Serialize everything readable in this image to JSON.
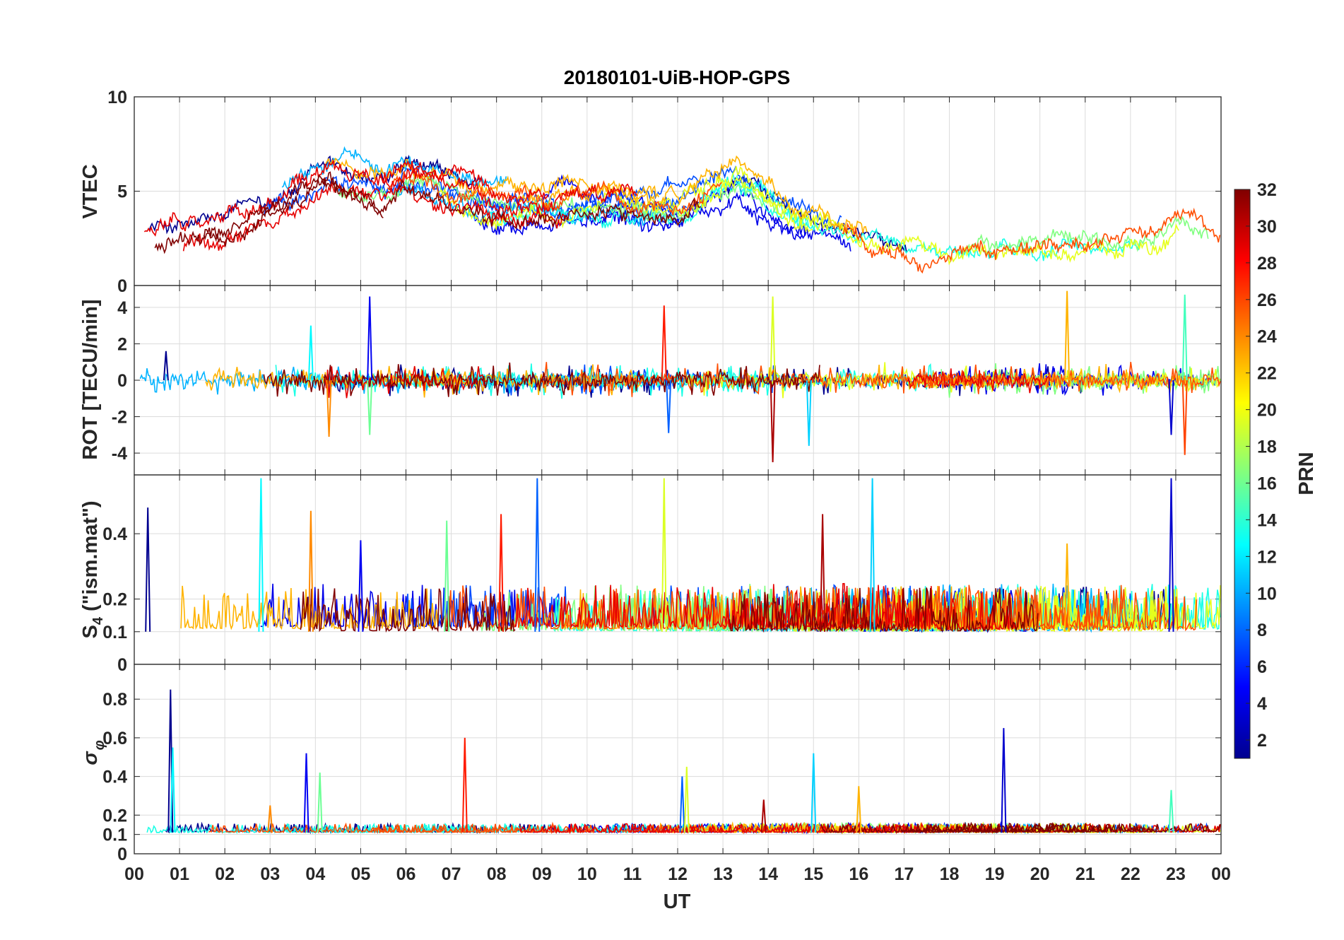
{
  "chart_data": {
    "type": "line",
    "title": "20180101-UiB-HOP-GPS",
    "x_label": "UT",
    "x_tick_labels": [
      "00",
      "01",
      "02",
      "03",
      "04",
      "05",
      "06",
      "07",
      "08",
      "09",
      "10",
      "11",
      "12",
      "13",
      "14",
      "15",
      "16",
      "17",
      "18",
      "19",
      "20",
      "21",
      "22",
      "23",
      "00"
    ],
    "xlim_hours": [
      0,
      24
    ],
    "colorbar": {
      "label": "PRN",
      "range": [
        1,
        32
      ],
      "tick_labels": [
        "2",
        "4",
        "6",
        "8",
        "10",
        "12",
        "14",
        "16",
        "18",
        "20",
        "22",
        "24",
        "26",
        "28",
        "30",
        "32"
      ],
      "colormap": [
        "#00008f",
        "#0000ff",
        "#0080ff",
        "#00ffff",
        "#80ff80",
        "#ffff00",
        "#ff8000",
        "#ff0000",
        "#800000"
      ]
    },
    "panels": [
      {
        "name": "VTEC",
        "ylabel": "VTEC",
        "ylim": [
          0,
          10
        ],
        "y_ticks": [
          0,
          5,
          10
        ],
        "y_tick_labels": [
          "0",
          "5",
          "10"
        ],
        "baseline": 3.5,
        "variability": 1.6,
        "envelope": [
          {
            "hour": 0.0,
            "level": 2.6
          },
          {
            "hour": 2.0,
            "level": 3.0
          },
          {
            "hour": 3.0,
            "level": 4.2
          },
          {
            "hour": 4.3,
            "level": 5.8
          },
          {
            "hour": 5.5,
            "level": 5.0
          },
          {
            "hour": 6.0,
            "level": 5.6
          },
          {
            "hour": 8.0,
            "level": 4.2
          },
          {
            "hour": 10.0,
            "level": 4.4
          },
          {
            "hour": 12.0,
            "level": 4.0
          },
          {
            "hour": 13.3,
            "level": 5.8
          },
          {
            "hour": 14.5,
            "level": 4.0
          },
          {
            "hour": 16.0,
            "level": 2.8
          },
          {
            "hour": 18.0,
            "level": 2.0
          },
          {
            "hour": 21.0,
            "level": 2.0
          },
          {
            "hour": 22.5,
            "level": 2.2
          },
          {
            "hour": 23.0,
            "level": 3.6
          },
          {
            "hour": 24.0,
            "level": 2.8
          }
        ]
      },
      {
        "name": "ROT",
        "ylabel": "ROT [TECU/min]",
        "ylim": [
          -5.2,
          5.2
        ],
        "y_ticks": [
          -4,
          -2,
          0,
          2,
          4
        ],
        "y_tick_labels": [
          "-4",
          "-2",
          "0",
          "2",
          "4"
        ],
        "baseline": 0.0,
        "variability": 0.6,
        "spikes": [
          {
            "hour": 0.7,
            "value": 1.6
          },
          {
            "hour": 3.9,
            "value": 3.0
          },
          {
            "hour": 4.3,
            "value": -3.1
          },
          {
            "hour": 5.2,
            "value": 4.6
          },
          {
            "hour": 5.2,
            "value": -3.0
          },
          {
            "hour": 11.7,
            "value": 4.1
          },
          {
            "hour": 11.8,
            "value": -2.9
          },
          {
            "hour": 14.1,
            "value": 4.6
          },
          {
            "hour": 14.1,
            "value": -4.5
          },
          {
            "hour": 14.9,
            "value": -3.6
          },
          {
            "hour": 20.6,
            "value": 4.9
          },
          {
            "hour": 22.9,
            "value": -3.0
          },
          {
            "hour": 23.2,
            "value": 4.7
          },
          {
            "hour": 23.2,
            "value": -4.1
          }
        ]
      },
      {
        "name": "S4",
        "ylabel": "S4 (\"ism.mat\")",
        "ylabel_main": "S",
        "ylabel_sub": "4",
        "ylabel_rest": " (\"ism.mat\")",
        "ylim": [
          0,
          0.58
        ],
        "y_ticks": [
          0,
          0.1,
          0.2,
          0.4
        ],
        "y_tick_labels": [
          "0",
          "0.1",
          "0.2",
          "0.4"
        ],
        "baseline": 0.1,
        "variability": 0.06,
        "spikes": [
          {
            "hour": 0.3,
            "value": 0.48
          },
          {
            "hour": 2.8,
            "value": 0.57
          },
          {
            "hour": 3.9,
            "value": 0.47
          },
          {
            "hour": 5.0,
            "value": 0.38
          },
          {
            "hour": 6.9,
            "value": 0.44
          },
          {
            "hour": 8.1,
            "value": 0.46
          },
          {
            "hour": 8.9,
            "value": 0.57
          },
          {
            "hour": 11.7,
            "value": 0.57
          },
          {
            "hour": 15.2,
            "value": 0.46
          },
          {
            "hour": 16.3,
            "value": 0.57
          },
          {
            "hour": 20.6,
            "value": 0.37
          },
          {
            "hour": 22.9,
            "value": 0.57
          }
        ]
      },
      {
        "name": "sigma_phi",
        "ylabel": "σ φ",
        "ylabel_main": "σ",
        "ylabel_sub": "φ",
        "ylim": [
          0,
          0.98
        ],
        "y_ticks": [
          0,
          0.1,
          0.2,
          0.4,
          0.6,
          0.8
        ],
        "y_tick_labels": [
          "0",
          "0.1",
          "0.2",
          "0.4",
          "0.6",
          "0.8"
        ],
        "baseline": 0.11,
        "variability": 0.02,
        "spikes": [
          {
            "hour": 0.8,
            "value": 0.85
          },
          {
            "hour": 0.85,
            "value": 0.55
          },
          {
            "hour": 3.0,
            "value": 0.25
          },
          {
            "hour": 3.8,
            "value": 0.52
          },
          {
            "hour": 4.1,
            "value": 0.42
          },
          {
            "hour": 7.3,
            "value": 0.6
          },
          {
            "hour": 12.1,
            "value": 0.4
          },
          {
            "hour": 12.2,
            "value": 0.45
          },
          {
            "hour": 13.9,
            "value": 0.28
          },
          {
            "hour": 15.0,
            "value": 0.52
          },
          {
            "hour": 16.0,
            "value": 0.35
          },
          {
            "hour": 19.2,
            "value": 0.65
          },
          {
            "hour": 22.9,
            "value": 0.33
          }
        ]
      }
    ]
  }
}
